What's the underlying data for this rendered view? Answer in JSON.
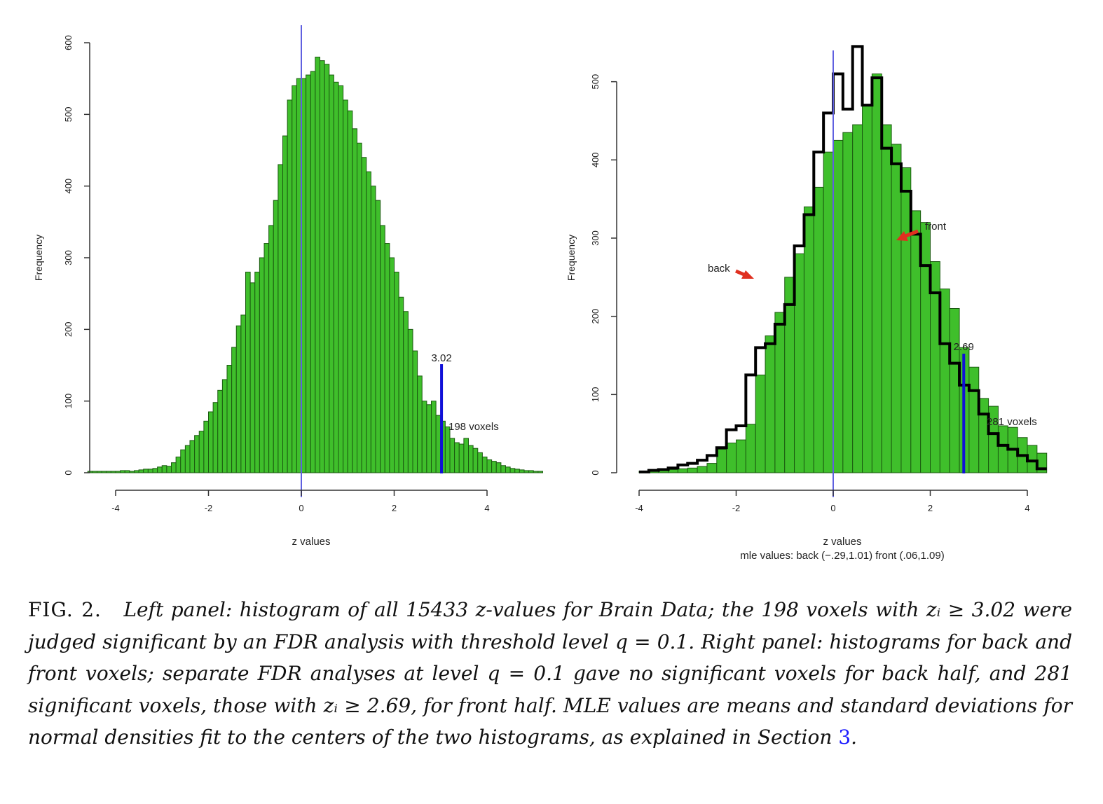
{
  "figure": {
    "label": "FIG. 2.",
    "caption_body": "Left panel: histogram of all 15433 z-values for Brain Data; the 198 voxels with zᵢ ≥ 3.02 were judged significant by an FDR analysis with threshold level q = 0.1. Right panel: histograms for back and front voxels; separate FDR analyses at level q = 0.1 gave no significant voxels for back half, and 281 significant voxels, those with zᵢ ≥ 2.69, for front half. MLE values are means and standard deviations for normal densities fit to the centers of the two histograms, as explained in Section",
    "section_ref": "3",
    "caption_end": "."
  },
  "colors": {
    "bar_fill": "#3fbf2b",
    "bar_edge": "#1b5a10",
    "threshold": "#1010d8",
    "center_line": "#6060e0",
    "arrow": "#e03020",
    "outline": "#000000"
  },
  "chart_data": [
    {
      "type": "bar",
      "panel": "left",
      "xlabel": "z values",
      "ylabel": "Frequency",
      "xlim": [
        -4.6,
        5.0
      ],
      "ylim": [
        0,
        600
      ],
      "x_ticks": [
        "-4",
        "-2",
        "0",
        "2",
        "4"
      ],
      "x_tick_values": [
        -4,
        -2,
        0,
        2,
        4
      ],
      "y_ticks": [
        "0",
        "100",
        "200",
        "300",
        "400",
        "500",
        "600"
      ],
      "y_tick_values": [
        0,
        100,
        200,
        300,
        400,
        500,
        600
      ],
      "bin_start": -4.6,
      "bin_width": 0.1,
      "values": [
        2,
        2,
        2,
        2,
        2,
        2,
        2,
        3,
        3,
        2,
        3,
        4,
        5,
        5,
        6,
        8,
        10,
        9,
        14,
        22,
        32,
        38,
        45,
        52,
        58,
        72,
        85,
        98,
        115,
        130,
        150,
        175,
        205,
        220,
        280,
        265,
        280,
        300,
        320,
        345,
        380,
        430,
        470,
        520,
        540,
        550,
        550,
        555,
        560,
        580,
        575,
        570,
        555,
        545,
        540,
        520,
        505,
        480,
        460,
        440,
        420,
        400,
        380,
        345,
        320,
        300,
        280,
        245,
        225,
        200,
        170,
        135,
        100,
        95,
        100,
        80,
        72,
        64,
        48,
        42,
        40,
        48,
        38,
        34,
        28,
        22,
        18,
        16,
        14,
        10,
        8,
        6,
        5,
        4,
        3,
        3,
        2,
        2
      ],
      "threshold": {
        "value": 3.02,
        "label": "3.02",
        "annotation": "198 voxels"
      }
    },
    {
      "type": "bar",
      "panel": "right",
      "xlabel": "z values",
      "subtitle": "mle values: back (−.29,1.01)  front (.06,1.09)",
      "ylabel": "Frequency",
      "xlim": [
        -4.0,
        4.5
      ],
      "ylim": [
        0,
        550
      ],
      "x_ticks": [
        "-4",
        "-2",
        "0",
        "2",
        "4"
      ],
      "x_tick_values": [
        -4,
        -2,
        0,
        2,
        4
      ],
      "y_ticks": [
        "0",
        "100",
        "200",
        "300",
        "400",
        "500"
      ],
      "y_tick_values": [
        0,
        100,
        200,
        300,
        400,
        500
      ],
      "bin_start": -4.0,
      "bin_width": 0.2,
      "series": [
        {
          "name": "front",
          "style": "bars",
          "values": [
            2,
            3,
            4,
            4,
            5,
            6,
            8,
            12,
            30,
            38,
            42,
            62,
            125,
            175,
            205,
            250,
            280,
            340,
            365,
            410,
            425,
            435,
            445,
            470,
            510,
            445,
            420,
            390,
            335,
            320,
            270,
            235,
            210,
            160,
            135,
            95,
            85,
            60,
            58,
            45,
            35,
            25
          ]
        },
        {
          "name": "back",
          "style": "outline",
          "values": [
            1,
            3,
            4,
            6,
            10,
            12,
            16,
            22,
            32,
            55,
            60,
            125,
            160,
            165,
            190,
            215,
            290,
            330,
            410,
            460,
            510,
            465,
            545,
            470,
            505,
            415,
            395,
            360,
            305,
            265,
            230,
            165,
            140,
            112,
            105,
            75,
            50,
            35,
            30,
            22,
            15,
            5
          ]
        }
      ],
      "annotations": {
        "back_label": "back",
        "front_label": "front"
      },
      "threshold": {
        "value": 2.69,
        "label": "2.69",
        "annotation": "281 voxels"
      }
    }
  ]
}
